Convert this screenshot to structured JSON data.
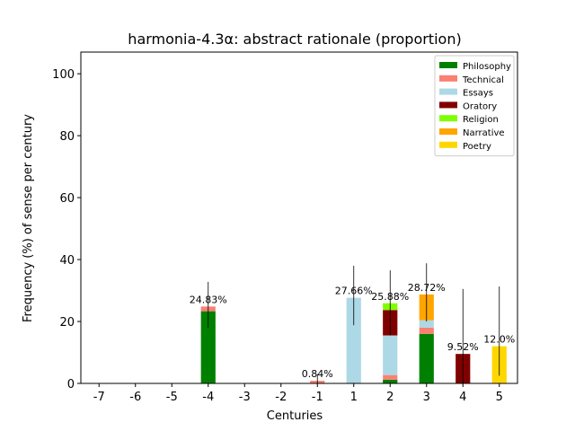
{
  "chart_data": {
    "type": "bar",
    "stacked": true,
    "title": "harmonia-4.3α: abstract rationale (proportion)",
    "xlabel": "Centuries",
    "ylabel": "Frequency (%) of sense per century",
    "categories": [
      "-7",
      "-6",
      "-5",
      "-4",
      "-3",
      "-2",
      "-1",
      "1",
      "2",
      "3",
      "4",
      "5"
    ],
    "ylim": [
      0,
      107
    ],
    "yticks": [
      0,
      20,
      40,
      60,
      80,
      100
    ],
    "legend_position": "top-right",
    "series": [
      {
        "name": "Philosophy",
        "color": "#008000",
        "values": [
          0,
          0,
          0,
          23.3,
          0,
          0,
          0,
          0,
          1.2,
          16.0,
          0,
          0
        ]
      },
      {
        "name": "Technical",
        "color": "#FA8072",
        "values": [
          0,
          0,
          0,
          1.53,
          0,
          0,
          0.84,
          0,
          1.5,
          2.0,
          0,
          0
        ]
      },
      {
        "name": "Essays",
        "color": "#ADD8E6",
        "values": [
          0,
          0,
          0,
          0,
          0,
          0,
          0,
          27.66,
          12.8,
          2.4,
          0,
          0
        ]
      },
      {
        "name": "Oratory",
        "color": "#800000",
        "values": [
          0,
          0,
          0,
          0,
          0,
          0,
          0,
          0,
          8.2,
          0,
          9.52,
          0
        ]
      },
      {
        "name": "Religion",
        "color": "#7FFF00",
        "values": [
          0,
          0,
          0,
          0,
          0,
          0,
          0,
          0,
          2.18,
          0,
          0,
          0
        ]
      },
      {
        "name": "Narrative",
        "color": "#FFA500",
        "values": [
          0,
          0,
          0,
          0,
          0,
          0,
          0,
          0,
          0,
          8.32,
          0,
          0
        ]
      },
      {
        "name": "Poetry",
        "color": "#FFD700",
        "values": [
          0,
          0,
          0,
          0,
          0,
          0,
          0,
          0,
          0,
          0,
          0,
          12.0
        ]
      }
    ],
    "totals": [
      {
        "category": "-4",
        "label": "24.83%",
        "value": 24.83,
        "err_low": 18.0,
        "err_high": 32.8
      },
      {
        "category": "-1",
        "label": "0.84%",
        "value": 0.84,
        "err_low": 0.0,
        "err_high": 3.0
      },
      {
        "category": "1",
        "label": "27.66%",
        "value": 27.66,
        "err_low": 18.8,
        "err_high": 38.0
      },
      {
        "category": "2",
        "label": "25.88%",
        "value": 25.88,
        "err_low": 15.5,
        "err_high": 36.5
      },
      {
        "category": "3",
        "label": "28.72%",
        "value": 28.72,
        "err_low": 20.0,
        "err_high": 38.8
      },
      {
        "category": "4",
        "label": "9.52%",
        "value": 9.52,
        "err_low": 0.0,
        "err_high": 30.5
      },
      {
        "category": "5",
        "label": "12.0%",
        "value": 12.0,
        "err_low": 2.5,
        "err_high": 31.3
      }
    ]
  }
}
